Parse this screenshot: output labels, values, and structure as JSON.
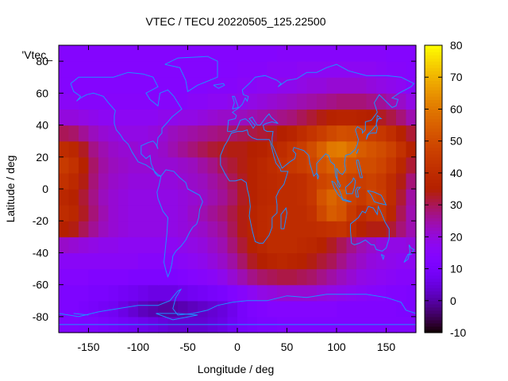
{
  "chart_data": {
    "type": "heatmap",
    "title": "VTEC / TECU 20220505_125.22500",
    "xlabel": "Longitude / deg",
    "ylabel": "Latitude / deg",
    "key_label": "'Vtec_",
    "xlim": [
      -180,
      180
    ],
    "ylim": [
      -90,
      90
    ],
    "x_ticks": [
      -150,
      -100,
      -50,
      0,
      50,
      100,
      150
    ],
    "y_ticks": [
      -80,
      -60,
      -40,
      -20,
      0,
      20,
      40,
      60,
      80
    ],
    "colorbar": {
      "range": [
        -10,
        80
      ],
      "ticks": [
        -10,
        0,
        10,
        20,
        30,
        40,
        50,
        60,
        70,
        80
      ],
      "palette": "black-purple-red-orange-yellow"
    },
    "lat": [
      -85,
      -75,
      -65,
      -55,
      -45,
      -35,
      -25,
      -15,
      -5,
      5,
      15,
      25,
      35,
      45,
      55,
      65,
      75,
      85
    ],
    "lon": [
      -175,
      -165,
      -155,
      -145,
      -135,
      -125,
      -115,
      -105,
      -95,
      -85,
      -75,
      -65,
      -55,
      -45,
      -35,
      -25,
      -15,
      -5,
      5,
      15,
      25,
      35,
      45,
      55,
      65,
      75,
      85,
      95,
      105,
      115,
      125,
      135,
      145,
      155,
      165,
      175
    ],
    "values": [
      [
        13,
        13,
        12,
        12,
        11,
        10,
        9,
        8,
        7,
        6,
        5,
        4,
        4,
        4,
        4,
        5,
        6,
        8,
        10,
        11,
        12,
        12,
        13,
        13,
        13,
        13,
        13,
        13,
        13,
        13,
        13,
        13,
        13,
        13,
        13,
        13
      ],
      [
        12,
        12,
        11,
        10,
        9,
        8,
        6,
        4,
        2,
        1,
        0,
        0,
        1,
        2,
        3,
        4,
        5,
        7,
        10,
        12,
        13,
        14,
        14,
        14,
        14,
        14,
        14,
        14,
        13,
        13,
        13,
        13,
        13,
        13,
        12,
        12
      ],
      [
        12,
        12,
        12,
        11,
        11,
        10,
        9,
        8,
        7,
        6,
        6,
        6,
        7,
        8,
        9,
        10,
        11,
        13,
        15,
        17,
        19,
        20,
        21,
        21,
        21,
        21,
        20,
        19,
        18,
        17,
        16,
        15,
        14,
        13,
        13,
        12
      ],
      [
        14,
        14,
        14,
        13,
        13,
        13,
        13,
        12,
        12,
        12,
        12,
        12,
        13,
        14,
        15,
        16,
        18,
        21,
        24,
        27,
        29,
        30,
        31,
        31,
        30,
        29,
        27,
        25,
        23,
        21,
        19,
        18,
        17,
        16,
        15,
        15
      ],
      [
        16,
        16,
        16,
        16,
        16,
        16,
        16,
        16,
        15,
        15,
        15,
        15,
        16,
        17,
        18,
        20,
        22,
        25,
        29,
        33,
        35,
        37,
        38,
        37,
        36,
        34,
        32,
        30,
        27,
        24,
        22,
        20,
        19,
        18,
        17,
        17
      ],
      [
        22,
        21,
        20,
        19,
        18,
        18,
        17,
        17,
        17,
        17,
        17,
        17,
        18,
        19,
        20,
        22,
        24,
        28,
        32,
        36,
        38,
        40,
        40,
        40,
        39,
        38,
        36,
        33,
        30,
        27,
        24,
        22,
        20,
        19,
        19,
        20
      ],
      [
        35,
        34,
        30,
        26,
        23,
        21,
        20,
        19,
        19,
        19,
        19,
        19,
        20,
        21,
        22,
        24,
        26,
        30,
        34,
        37,
        39,
        40,
        40,
        40,
        40,
        40,
        41,
        42,
        43,
        40,
        36,
        34,
        34,
        32,
        28,
        24
      ],
      [
        40,
        38,
        33,
        28,
        24,
        21,
        20,
        19,
        19,
        19,
        19,
        19,
        20,
        22,
        24,
        26,
        28,
        31,
        34,
        37,
        39,
        40,
        40,
        40,
        40,
        42,
        49,
        54,
        52,
        45,
        40,
        43,
        44,
        38,
        30,
        24
      ],
      [
        38,
        36,
        32,
        27,
        23,
        21,
        20,
        19,
        19,
        19,
        19,
        19,
        20,
        21,
        22,
        24,
        26,
        29,
        33,
        36,
        38,
        39,
        40,
        40,
        41,
        44,
        52,
        56,
        53,
        47,
        45,
        48,
        46,
        40,
        32,
        25
      ],
      [
        42,
        39,
        34,
        28,
        24,
        22,
        21,
        20,
        20,
        20,
        20,
        20,
        21,
        22,
        23,
        25,
        27,
        30,
        33,
        36,
        38,
        39,
        40,
        40,
        41,
        44,
        48,
        50,
        49,
        47,
        46,
        47,
        45,
        40,
        34,
        28
      ],
      [
        45,
        42,
        36,
        29,
        25,
        23,
        22,
        21,
        21,
        21,
        21,
        21,
        22,
        23,
        25,
        27,
        30,
        32,
        34,
        36,
        38,
        40,
        42,
        44,
        46,
        48,
        52,
        55,
        55,
        52,
        50,
        50,
        48,
        44,
        38,
        32
      ],
      [
        40,
        38,
        33,
        27,
        24,
        22,
        21,
        21,
        20,
        21,
        22,
        24,
        26,
        28,
        30,
        32,
        33,
        34,
        34,
        35,
        36,
        38,
        40,
        43,
        46,
        50,
        55,
        60,
        61,
        58,
        54,
        52,
        50,
        47,
        42,
        36
      ],
      [
        30,
        29,
        26,
        23,
        21,
        20,
        19,
        19,
        19,
        20,
        21,
        23,
        24,
        25,
        26,
        27,
        28,
        29,
        30,
        31,
        32,
        33,
        35,
        37,
        40,
        43,
        46,
        49,
        51,
        50,
        48,
        46,
        44,
        41,
        36,
        32
      ],
      [
        20,
        20,
        19,
        18,
        17,
        17,
        17,
        17,
        17,
        17,
        18,
        18,
        19,
        19,
        20,
        21,
        22,
        22,
        23,
        24,
        25,
        26,
        27,
        28,
        30,
        32,
        34,
        36,
        37,
        37,
        36,
        35,
        33,
        31,
        28,
        24
      ],
      [
        16,
        16,
        15,
        15,
        15,
        15,
        15,
        15,
        15,
        15,
        15,
        15,
        15,
        16,
        16,
        17,
        17,
        18,
        18,
        19,
        20,
        21,
        22,
        23,
        24,
        25,
        26,
        27,
        28,
        28,
        28,
        27,
        26,
        24,
        22,
        19
      ],
      [
        14,
        14,
        14,
        14,
        14,
        14,
        14,
        14,
        14,
        14,
        14,
        14,
        14,
        14,
        14,
        15,
        15,
        15,
        16,
        16,
        17,
        17,
        18,
        18,
        19,
        20,
        20,
        21,
        21,
        21,
        21,
        20,
        19,
        18,
        17,
        15
      ],
      [
        14,
        14,
        14,
        14,
        14,
        14,
        14,
        14,
        14,
        14,
        14,
        14,
        14,
        14,
        14,
        14,
        14,
        14,
        15,
        15,
        15,
        16,
        16,
        16,
        17,
        17,
        17,
        17,
        17,
        17,
        17,
        17,
        16,
        15,
        15,
        14
      ],
      [
        14,
        14,
        14,
        14,
        14,
        14,
        14,
        14,
        14,
        14,
        14,
        14,
        14,
        14,
        14,
        14,
        14,
        14,
        14,
        14,
        14,
        14,
        15,
        15,
        15,
        15,
        15,
        15,
        15,
        15,
        15,
        15,
        15,
        14,
        14,
        14
      ]
    ],
    "coastline_color": "#1e90ff"
  }
}
